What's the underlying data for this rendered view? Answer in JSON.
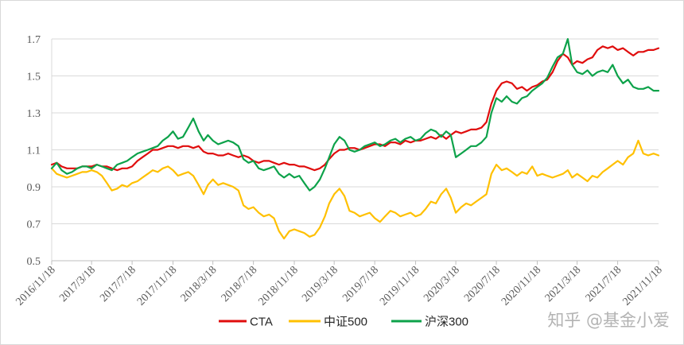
{
  "chart_data": {
    "type": "line",
    "xlim": [
      "2016/11/18",
      "2021/11/18"
    ],
    "ylim": [
      0.5,
      1.7
    ],
    "yticks": [
      "0.5",
      "0.7",
      "0.9",
      "1.1",
      "1.3",
      "1.5",
      "1.7"
    ],
    "xticks": [
      "2016/11/18",
      "2017/3/18",
      "2017/7/18",
      "2017/11/18",
      "2018/3/18",
      "2018/7/18",
      "2018/11/18",
      "2019/3/18",
      "2019/7/18",
      "2019/11/18",
      "2020/3/18",
      "2020/7/18",
      "2020/11/18",
      "2021/3/18",
      "2021/7/18",
      "2021/11/18"
    ],
    "grid": "horizontal",
    "legend": "bottom",
    "x": [
      "2016/11/18",
      "2016/12/3",
      "2016/12/18",
      "2017/1/3",
      "2017/1/18",
      "2017/2/3",
      "2017/2/18",
      "2017/3/3",
      "2017/3/18",
      "2017/4/3",
      "2017/4/18",
      "2017/5/3",
      "2017/5/18",
      "2017/6/3",
      "2017/6/18",
      "2017/7/3",
      "2017/7/18",
      "2017/8/3",
      "2017/8/18",
      "2017/9/3",
      "2017/9/18",
      "2017/10/3",
      "2017/10/18",
      "2017/11/3",
      "2017/11/18",
      "2017/12/3",
      "2017/12/18",
      "2018/1/3",
      "2018/1/18",
      "2018/2/3",
      "2018/2/18",
      "2018/3/3",
      "2018/3/18",
      "2018/4/3",
      "2018/4/18",
      "2018/5/3",
      "2018/5/18",
      "2018/6/3",
      "2018/6/18",
      "2018/7/3",
      "2018/7/18",
      "2018/8/3",
      "2018/8/18",
      "2018/9/3",
      "2018/9/18",
      "2018/10/3",
      "2018/10/18",
      "2018/11/3",
      "2018/11/18",
      "2018/12/3",
      "2018/12/18",
      "2019/1/3",
      "2019/1/18",
      "2019/2/3",
      "2019/2/18",
      "2019/3/3",
      "2019/3/18",
      "2019/4/3",
      "2019/4/18",
      "2019/5/3",
      "2019/5/18",
      "2019/6/3",
      "2019/6/18",
      "2019/7/3",
      "2019/7/18",
      "2019/8/3",
      "2019/8/18",
      "2019/9/3",
      "2019/9/18",
      "2019/10/3",
      "2019/10/18",
      "2019/11/3",
      "2019/11/18",
      "2019/12/3",
      "2019/12/18",
      "2020/1/3",
      "2020/1/18",
      "2020/2/3",
      "2020/2/18",
      "2020/3/3",
      "2020/3/18",
      "2020/4/3",
      "2020/4/18",
      "2020/5/3",
      "2020/5/18",
      "2020/6/3",
      "2020/6/18",
      "2020/7/3",
      "2020/7/18",
      "2020/8/3",
      "2020/8/18",
      "2020/9/3",
      "2020/9/18",
      "2020/10/3",
      "2020/10/18",
      "2020/11/3",
      "2020/11/18",
      "2020/12/3",
      "2020/12/18",
      "2021/1/3",
      "2021/1/18",
      "2021/2/3",
      "2021/2/18",
      "2021/3/3",
      "2021/3/18",
      "2021/4/3",
      "2021/4/18",
      "2021/5/3",
      "2021/5/18",
      "2021/6/3",
      "2021/6/18",
      "2021/7/3",
      "2021/7/18",
      "2021/8/3",
      "2021/8/18",
      "2021/9/3",
      "2021/9/18",
      "2021/10/3",
      "2021/10/18",
      "2021/11/3",
      "2021/11/18"
    ],
    "series": [
      {
        "name": "CTA",
        "color": "#e00d0d",
        "values": [
          1.02,
          1.03,
          1.01,
          1.0,
          1.0,
          1.0,
          1.01,
          1.01,
          1.01,
          1.02,
          1.01,
          1.01,
          1.0,
          0.99,
          1.0,
          1.0,
          1.01,
          1.04,
          1.06,
          1.08,
          1.1,
          1.1,
          1.11,
          1.12,
          1.12,
          1.11,
          1.12,
          1.12,
          1.11,
          1.12,
          1.09,
          1.08,
          1.08,
          1.07,
          1.07,
          1.08,
          1.07,
          1.06,
          1.07,
          1.06,
          1.04,
          1.03,
          1.04,
          1.04,
          1.03,
          1.02,
          1.03,
          1.02,
          1.02,
          1.01,
          1.01,
          1.0,
          0.99,
          1.0,
          1.02,
          1.05,
          1.08,
          1.1,
          1.1,
          1.11,
          1.11,
          1.1,
          1.11,
          1.12,
          1.13,
          1.13,
          1.12,
          1.14,
          1.14,
          1.13,
          1.15,
          1.14,
          1.15,
          1.15,
          1.16,
          1.17,
          1.16,
          1.18,
          1.16,
          1.18,
          1.2,
          1.19,
          1.2,
          1.21,
          1.21,
          1.22,
          1.25,
          1.35,
          1.42,
          1.46,
          1.47,
          1.46,
          1.43,
          1.44,
          1.42,
          1.44,
          1.45,
          1.47,
          1.48,
          1.52,
          1.58,
          1.62,
          1.6,
          1.56,
          1.58,
          1.57,
          1.59,
          1.6,
          1.64,
          1.66,
          1.65,
          1.66,
          1.64,
          1.65,
          1.63,
          1.61,
          1.63,
          1.63,
          1.64,
          1.64,
          1.65
        ]
      },
      {
        "name": "中证500",
        "color": "#ffc000",
        "values": [
          1.0,
          0.97,
          0.96,
          0.95,
          0.96,
          0.97,
          0.98,
          0.98,
          0.99,
          0.98,
          0.96,
          0.92,
          0.88,
          0.89,
          0.91,
          0.9,
          0.92,
          0.93,
          0.95,
          0.97,
          0.99,
          0.98,
          1.0,
          1.01,
          0.99,
          0.96,
          0.97,
          0.98,
          0.96,
          0.91,
          0.86,
          0.91,
          0.94,
          0.91,
          0.92,
          0.91,
          0.9,
          0.88,
          0.8,
          0.78,
          0.79,
          0.76,
          0.74,
          0.75,
          0.73,
          0.66,
          0.62,
          0.66,
          0.67,
          0.66,
          0.65,
          0.63,
          0.64,
          0.68,
          0.74,
          0.81,
          0.86,
          0.89,
          0.85,
          0.77,
          0.76,
          0.74,
          0.75,
          0.76,
          0.73,
          0.71,
          0.74,
          0.77,
          0.76,
          0.74,
          0.75,
          0.76,
          0.74,
          0.75,
          0.78,
          0.82,
          0.81,
          0.86,
          0.89,
          0.84,
          0.76,
          0.79,
          0.81,
          0.8,
          0.82,
          0.84,
          0.86,
          0.97,
          1.02,
          0.99,
          1.0,
          0.98,
          0.96,
          0.98,
          0.97,
          1.01,
          0.96,
          0.97,
          0.96,
          0.95,
          0.96,
          0.97,
          0.99,
          0.95,
          0.97,
          0.95,
          0.93,
          0.96,
          0.95,
          0.98,
          1.0,
          1.02,
          1.04,
          1.02,
          1.06,
          1.08,
          1.15,
          1.08,
          1.07,
          1.08,
          1.07
        ]
      },
      {
        "name": "沪深300",
        "color": "#0da24a",
        "values": [
          1.0,
          1.03,
          0.99,
          0.97,
          0.98,
          1.0,
          1.01,
          1.01,
          1.0,
          1.02,
          1.01,
          1.0,
          0.99,
          1.02,
          1.03,
          1.04,
          1.06,
          1.08,
          1.09,
          1.1,
          1.11,
          1.12,
          1.15,
          1.17,
          1.2,
          1.16,
          1.17,
          1.22,
          1.27,
          1.2,
          1.15,
          1.18,
          1.15,
          1.13,
          1.14,
          1.15,
          1.14,
          1.12,
          1.05,
          1.03,
          1.04,
          1.0,
          0.99,
          1.0,
          1.01,
          0.97,
          0.95,
          0.97,
          0.95,
          0.96,
          0.92,
          0.88,
          0.9,
          0.94,
          1.0,
          1.06,
          1.13,
          1.17,
          1.15,
          1.1,
          1.09,
          1.1,
          1.12,
          1.13,
          1.14,
          1.12,
          1.13,
          1.15,
          1.16,
          1.14,
          1.16,
          1.17,
          1.15,
          1.16,
          1.19,
          1.21,
          1.2,
          1.17,
          1.2,
          1.18,
          1.06,
          1.08,
          1.1,
          1.12,
          1.12,
          1.14,
          1.17,
          1.3,
          1.38,
          1.36,
          1.39,
          1.36,
          1.35,
          1.38,
          1.39,
          1.42,
          1.44,
          1.46,
          1.49,
          1.55,
          1.6,
          1.62,
          1.7,
          1.56,
          1.52,
          1.51,
          1.53,
          1.5,
          1.52,
          1.53,
          1.52,
          1.56,
          1.5,
          1.46,
          1.48,
          1.44,
          1.43,
          1.43,
          1.44,
          1.42,
          1.42
        ]
      }
    ]
  },
  "watermark": "知乎 @基金小爱"
}
